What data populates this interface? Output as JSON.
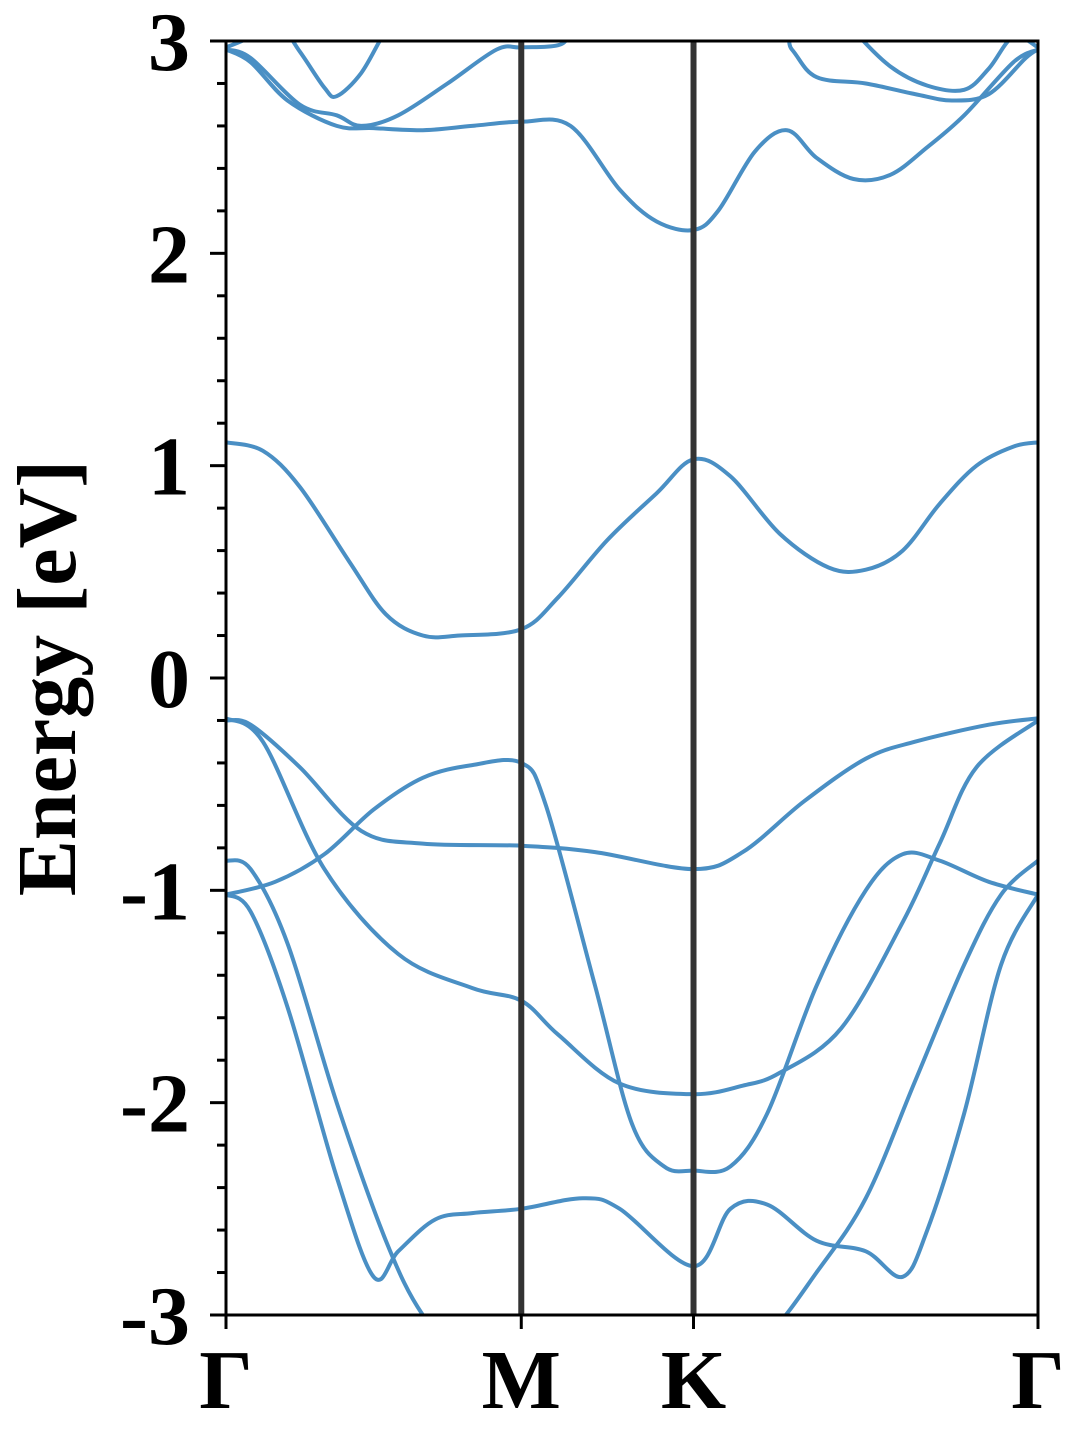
{
  "chart_data": {
    "type": "line",
    "ylabel": "Energy [eV]",
    "xlabel": "",
    "ylim": [
      -3,
      3
    ],
    "yticks": [
      -3,
      -2,
      -1,
      0,
      1,
      2,
      3
    ],
    "ytick_labels": [
      "-3",
      "-2",
      "-1",
      "0",
      "1",
      "2",
      "3"
    ],
    "minor_y_step": 0.2,
    "xlim": [
      0,
      3.3
    ],
    "kpoints": [
      {
        "label": "Γ",
        "x": 0
      },
      {
        "label": "M",
        "x": 1.2
      },
      {
        "label": "K",
        "x": 1.9
      },
      {
        "label": "Γ",
        "x": 3.3
      }
    ],
    "grid": false,
    "line_color": "#4a8fc4",
    "vline_color": "#333333",
    "series": [
      {
        "values": [
          [
            0,
            -1.02
          ],
          [
            0.1,
            -1.1
          ],
          [
            0.25,
            -1.55
          ],
          [
            0.45,
            -2.35
          ],
          [
            0.6,
            -2.82
          ],
          [
            0.7,
            -2.7
          ],
          [
            0.85,
            -2.55
          ],
          [
            1.0,
            -2.52
          ],
          [
            1.2,
            -2.5
          ],
          [
            1.45,
            -2.45
          ],
          [
            1.6,
            -2.5
          ],
          [
            1.9,
            -2.77
          ],
          [
            2.05,
            -2.5
          ],
          [
            2.2,
            -2.48
          ],
          [
            2.4,
            -2.65
          ],
          [
            2.6,
            -2.7
          ],
          [
            2.75,
            -2.82
          ],
          [
            2.85,
            -2.6
          ],
          [
            3.0,
            -2.05
          ],
          [
            3.15,
            -1.35
          ],
          [
            3.3,
            -1.02
          ]
        ]
      },
      {
        "values": [
          [
            0,
            -0.86
          ],
          [
            0.1,
            -0.9
          ],
          [
            0.25,
            -1.25
          ],
          [
            0.45,
            -2.0
          ],
          [
            0.65,
            -2.65
          ],
          [
            0.8,
            -3.0
          ],
          [
            1.0,
            -3.25
          ],
          [
            1.2,
            -3.4
          ],
          [
            1.9,
            -3.4
          ],
          [
            2.2,
            -3.1
          ],
          [
            2.4,
            -2.8
          ],
          [
            2.6,
            -2.45
          ],
          [
            2.8,
            -1.9
          ],
          [
            3.0,
            -1.35
          ],
          [
            3.15,
            -1.02
          ],
          [
            3.3,
            -0.86
          ]
        ]
      },
      {
        "values": [
          [
            0,
            -0.19
          ],
          [
            0.15,
            -0.3
          ],
          [
            0.4,
            -0.9
          ],
          [
            0.7,
            -1.3
          ],
          [
            1.0,
            -1.46
          ],
          [
            1.2,
            -1.52
          ],
          [
            1.35,
            -1.68
          ],
          [
            1.6,
            -1.91
          ],
          [
            1.9,
            -1.96
          ],
          [
            2.1,
            -1.92
          ],
          [
            2.25,
            -1.86
          ],
          [
            2.5,
            -1.65
          ],
          [
            2.75,
            -1.15
          ],
          [
            2.9,
            -0.78
          ],
          [
            3.05,
            -0.42
          ],
          [
            3.3,
            -0.2
          ]
        ]
      },
      {
        "values": [
          [
            0,
            -0.2
          ],
          [
            0.1,
            -0.22
          ],
          [
            0.3,
            -0.42
          ],
          [
            0.55,
            -0.72
          ],
          [
            0.8,
            -0.78
          ],
          [
            1.2,
            -0.79
          ],
          [
            1.5,
            -0.82
          ],
          [
            1.9,
            -0.9
          ],
          [
            2.1,
            -0.82
          ],
          [
            2.35,
            -0.58
          ],
          [
            2.6,
            -0.38
          ],
          [
            2.8,
            -0.3
          ],
          [
            3.1,
            -0.22
          ],
          [
            3.3,
            -0.19
          ]
        ]
      },
      {
        "values": [
          [
            0,
            -1.02
          ],
          [
            0.2,
            -0.96
          ],
          [
            0.4,
            -0.83
          ],
          [
            0.6,
            -0.62
          ],
          [
            0.8,
            -0.47
          ],
          [
            1.0,
            -0.41
          ],
          [
            1.2,
            -0.4
          ],
          [
            1.3,
            -0.6
          ],
          [
            1.5,
            -1.45
          ],
          [
            1.65,
            -2.1
          ],
          [
            1.78,
            -2.3
          ],
          [
            1.9,
            -2.32
          ],
          [
            2.05,
            -2.3
          ],
          [
            2.2,
            -2.05
          ],
          [
            2.4,
            -1.45
          ],
          [
            2.6,
            -1.0
          ],
          [
            2.75,
            -0.83
          ],
          [
            2.9,
            -0.86
          ],
          [
            3.1,
            -0.96
          ],
          [
            3.3,
            -1.02
          ]
        ]
      },
      {
        "values": [
          [
            0,
            1.11
          ],
          [
            0.15,
            1.07
          ],
          [
            0.3,
            0.9
          ],
          [
            0.5,
            0.55
          ],
          [
            0.65,
            0.3
          ],
          [
            0.8,
            0.2
          ],
          [
            0.95,
            0.2
          ],
          [
            1.2,
            0.23
          ],
          [
            1.35,
            0.38
          ],
          [
            1.55,
            0.65
          ],
          [
            1.75,
            0.87
          ],
          [
            1.9,
            1.03
          ],
          [
            2.05,
            0.95
          ],
          [
            2.25,
            0.68
          ],
          [
            2.45,
            0.52
          ],
          [
            2.6,
            0.51
          ],
          [
            2.75,
            0.6
          ],
          [
            2.9,
            0.82
          ],
          [
            3.05,
            1.0
          ],
          [
            3.2,
            1.09
          ],
          [
            3.3,
            1.11
          ]
        ]
      },
      {
        "values": [
          [
            0,
            2.96
          ],
          [
            0.1,
            2.9
          ],
          [
            0.25,
            2.72
          ],
          [
            0.45,
            2.6
          ],
          [
            0.6,
            2.59
          ],
          [
            0.8,
            2.58
          ],
          [
            1.0,
            2.6
          ],
          [
            1.2,
            2.62
          ],
          [
            1.4,
            2.6
          ],
          [
            1.6,
            2.3
          ],
          [
            1.75,
            2.15
          ],
          [
            1.9,
            2.11
          ],
          [
            2.0,
            2.2
          ],
          [
            2.15,
            2.48
          ],
          [
            2.28,
            2.58
          ],
          [
            2.4,
            2.45
          ],
          [
            2.55,
            2.35
          ],
          [
            2.7,
            2.37
          ],
          [
            2.85,
            2.5
          ],
          [
            3.0,
            2.65
          ],
          [
            3.2,
            2.9
          ],
          [
            3.3,
            2.96
          ]
        ]
      },
      {
        "values": [
          [
            0,
            2.96
          ],
          [
            0.1,
            2.92
          ],
          [
            0.3,
            2.7
          ],
          [
            0.45,
            2.65
          ],
          [
            0.55,
            2.6
          ],
          [
            0.7,
            2.65
          ],
          [
            0.9,
            2.8
          ],
          [
            1.1,
            2.96
          ],
          [
            1.2,
            2.97
          ],
          [
            1.35,
            2.98
          ],
          [
            1.5,
            3.05
          ],
          [
            2.2,
            3.1
          ],
          [
            2.3,
            2.96
          ],
          [
            2.4,
            2.83
          ],
          [
            2.6,
            2.8
          ],
          [
            2.8,
            2.75
          ],
          [
            2.95,
            2.72
          ],
          [
            3.1,
            2.75
          ],
          [
            3.25,
            2.92
          ],
          [
            3.3,
            2.96
          ]
        ]
      },
      {
        "values": [
          [
            0,
            2.97
          ],
          [
            0.1,
            3.02
          ],
          [
            0.2,
            3.1
          ],
          [
            0.3,
            2.95
          ],
          [
            0.4,
            2.78
          ],
          [
            0.45,
            2.74
          ],
          [
            0.55,
            2.85
          ],
          [
            0.65,
            3.05
          ],
          [
            0.75,
            3.2
          ]
        ]
      },
      {
        "values": [
          [
            2.4,
            3.25
          ],
          [
            2.55,
            3.05
          ],
          [
            2.7,
            2.88
          ],
          [
            2.85,
            2.79
          ],
          [
            3.0,
            2.77
          ],
          [
            3.1,
            2.87
          ],
          [
            3.2,
            3.02
          ],
          [
            3.3,
            2.97
          ]
        ]
      }
    ]
  }
}
